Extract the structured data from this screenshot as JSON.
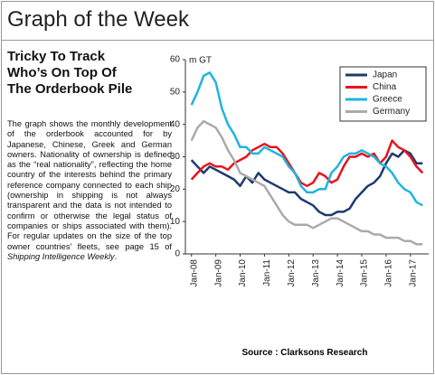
{
  "header": {
    "title": "Graph of the Week"
  },
  "article": {
    "heading": [
      "Tricky To Track",
      "Who’s On Top Of",
      "The Orderbook Pile"
    ],
    "body": "The graph shows the monthly development of the orderbook accounted for by Japanese, Chinese, Greek and German owners. Nationality of ownership is defined as the “real nationality”, reflecting the home country of the interests behind the primary reference company connected to each ship (ownership in shipping is not always transparent and the data is not intended to confirm or otherwise the legal status of companies or ships associated with them). For regular updates on the size of the top owner countries’ fleets, see page 15 of ",
    "body_italic": "Shipping Intelligence Weekly",
    "body_end": "."
  },
  "chart_data": {
    "type": "line",
    "y_label": "m GT",
    "categories": [
      "Jan-08",
      null,
      null,
      null,
      "Jan-09",
      null,
      null,
      null,
      "Jan-10",
      null,
      null,
      null,
      "Jan-11",
      null,
      null,
      null,
      "Jan-12",
      null,
      null,
      null,
      "Jan-13",
      null,
      null,
      null,
      "Jan-14",
      null,
      null,
      null,
      "Jan-15",
      null,
      null,
      null,
      "Jan-16",
      null,
      null,
      null,
      "Jan-17",
      null,
      null
    ],
    "series": [
      {
        "name": "Japan",
        "color": "#1f3a6e",
        "values": [
          29,
          27,
          25,
          27,
          26,
          25,
          24,
          23,
          21,
          24,
          22,
          25,
          23,
          22,
          21,
          20,
          19,
          19,
          17,
          16,
          15,
          13,
          12,
          12,
          13,
          13,
          14,
          17,
          19,
          21,
          22,
          24,
          28,
          31,
          30,
          32,
          31,
          28,
          28
        ]
      },
      {
        "name": "China",
        "color": "#e8141c",
        "values": [
          23,
          25,
          27,
          28,
          27,
          27,
          26,
          28,
          29,
          30,
          32,
          33,
          34,
          33,
          33,
          31,
          28,
          25,
          22,
          21,
          22,
          25,
          24,
          22,
          23,
          27,
          30,
          30,
          31,
          30,
          31,
          28,
          30,
          35,
          33,
          32,
          30,
          27,
          25
        ]
      },
      {
        "name": "Greece",
        "color": "#1fb4e0",
        "values": [
          46,
          50,
          55,
          56,
          53,
          45,
          40,
          37,
          33,
          33,
          31,
          31,
          33,
          32,
          31,
          30,
          27,
          25,
          21,
          19,
          19,
          20,
          20,
          25,
          27,
          30,
          31,
          31,
          32,
          31,
          30,
          28,
          27,
          25,
          22,
          20,
          19,
          16,
          15
        ]
      },
      {
        "name": "Germany",
        "color": "#aaaaaa",
        "values": [
          35,
          39,
          41,
          40,
          39,
          36,
          32,
          29,
          25,
          24,
          23,
          22,
          21,
          18,
          15,
          12,
          10,
          9,
          9,
          9,
          8,
          9,
          10,
          11,
          11,
          10,
          9,
          8,
          7,
          7,
          6,
          6,
          5,
          5,
          5,
          4,
          4,
          3,
          3
        ]
      }
    ],
    "ylim": [
      0,
      60
    ],
    "yticks": [
      0,
      10,
      20,
      30,
      40,
      50,
      60
    ],
    "grid": false,
    "legend": "top-right"
  },
  "source": "Source : Clarksons Research"
}
